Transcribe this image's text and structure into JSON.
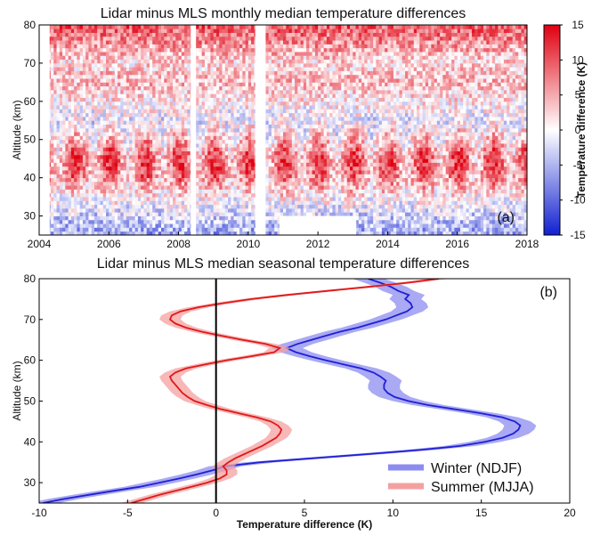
{
  "chart_data": [
    {
      "type": "heatmap",
      "title": "Lidar minus MLS  monthly median temperature differences",
      "panel_label": "(a)",
      "xlabel": "",
      "ylabel": "Altitude (km)",
      "xlim": [
        2004,
        2018
      ],
      "ylim": [
        25,
        80
      ],
      "x_ticks": [
        "2004",
        "2006",
        "2008",
        "2010",
        "2012",
        "2014",
        "2016",
        "2018"
      ],
      "y_ticks": [
        "30",
        "40",
        "50",
        "60",
        "70",
        "80"
      ],
      "colorbar": {
        "label": "Temperature difference (K)",
        "range": [
          -15,
          15
        ],
        "ticks": [
          "15",
          "10",
          "5",
          "0",
          "-5",
          "-10",
          "-15"
        ],
        "colormap": "blue-white-red",
        "low_color": "#1020d0",
        "mid_color": "#ffffff",
        "high_color": "#e00010"
      },
      "altitude_profile": [
        {
          "alt": 25,
          "dT": -6
        },
        {
          "alt": 30,
          "dT": -3
        },
        {
          "alt": 35,
          "dT": 1
        },
        {
          "alt": 40,
          "dT": 6
        },
        {
          "alt": 45,
          "dT": 8
        },
        {
          "alt": 50,
          "dT": 3
        },
        {
          "alt": 55,
          "dT": -1
        },
        {
          "alt": 60,
          "dT": 1
        },
        {
          "alt": 65,
          "dT": 4
        },
        {
          "alt": 70,
          "dT": 2
        },
        {
          "alt": 75,
          "dT": 6
        },
        {
          "alt": 80,
          "dT": 10
        }
      ],
      "data_gaps": [
        {
          "start": 2004.0,
          "end": 2004.3,
          "below_alt": 80
        },
        {
          "start": 2008.35,
          "end": 2008.5,
          "below_alt": 80
        },
        {
          "start": 2010.2,
          "end": 2010.5,
          "below_alt": 80
        },
        {
          "start": 2010.9,
          "end": 2013.1,
          "below_alt": 30
        }
      ]
    },
    {
      "type": "line",
      "title": "Lidar minus MLS  median seasonal temperature differences",
      "panel_label": "(b)",
      "xlabel": "Temperature difference (K)",
      "ylabel": "Altitude (km)",
      "xlim": [
        -10,
        20
      ],
      "ylim": [
        25,
        80
      ],
      "x_ticks": [
        "-10",
        "-5",
        "0",
        "5",
        "10",
        "15",
        "20"
      ],
      "y_ticks": [
        "30",
        "40",
        "50",
        "60",
        "70",
        "80"
      ],
      "legend_position": "bottom-right",
      "series": [
        {
          "name": "Winter (NDJF)",
          "color": "#1f1fd6",
          "band_color": "#8c8cf0",
          "band_halfwidth": 0.9,
          "points": [
            {
              "alt": 25,
              "dT": -9.8
            },
            {
              "alt": 26,
              "dT": -8.6
            },
            {
              "alt": 27,
              "dT": -7.2
            },
            {
              "alt": 28,
              "dT": -5.8
            },
            {
              "alt": 29,
              "dT": -4.3
            },
            {
              "alt": 30,
              "dT": -3.2
            },
            {
              "alt": 31,
              "dT": -2.1
            },
            {
              "alt": 32,
              "dT": -1.1
            },
            {
              "alt": 33,
              "dT": -0.2
            },
            {
              "alt": 34,
              "dT": 0.5
            },
            {
              "alt": 35,
              "dT": 2.5
            },
            {
              "alt": 36,
              "dT": 5.5
            },
            {
              "alt": 37,
              "dT": 8.6
            },
            {
              "alt": 38,
              "dT": 11.5
            },
            {
              "alt": 39,
              "dT": 13.8
            },
            {
              "alt": 40,
              "dT": 15.2
            },
            {
              "alt": 41,
              "dT": 16.2
            },
            {
              "alt": 42,
              "dT": 16.8
            },
            {
              "alt": 43,
              "dT": 17.1
            },
            {
              "alt": 44,
              "dT": 17.2
            },
            {
              "alt": 45,
              "dT": 16.9
            },
            {
              "alt": 46,
              "dT": 16.2
            },
            {
              "alt": 47,
              "dT": 15.0
            },
            {
              "alt": 48,
              "dT": 13.5
            },
            {
              "alt": 49,
              "dT": 12.0
            },
            {
              "alt": 50,
              "dT": 10.9
            },
            {
              "alt": 51,
              "dT": 10.1
            },
            {
              "alt": 52,
              "dT": 9.7
            },
            {
              "alt": 53,
              "dT": 9.5
            },
            {
              "alt": 54,
              "dT": 9.5
            },
            {
              "alt": 55,
              "dT": 9.6
            },
            {
              "alt": 56,
              "dT": 9.3
            },
            {
              "alt": 57,
              "dT": 8.9
            },
            {
              "alt": 58,
              "dT": 8.2
            },
            {
              "alt": 59,
              "dT": 7.2
            },
            {
              "alt": 60,
              "dT": 6.2
            },
            {
              "alt": 61,
              "dT": 5.3
            },
            {
              "alt": 62,
              "dT": 4.5
            },
            {
              "alt": 63,
              "dT": 4.0
            },
            {
              "alt": 64,
              "dT": 4.6
            },
            {
              "alt": 65,
              "dT": 5.4
            },
            {
              "alt": 66,
              "dT": 6.2
            },
            {
              "alt": 67,
              "dT": 7.0
            },
            {
              "alt": 68,
              "dT": 8.0
            },
            {
              "alt": 69,
              "dT": 8.8
            },
            {
              "alt": 70,
              "dT": 9.6
            },
            {
              "alt": 71,
              "dT": 10.2
            },
            {
              "alt": 72,
              "dT": 10.8
            },
            {
              "alt": 73,
              "dT": 11.1
            },
            {
              "alt": 74,
              "dT": 11.0
            },
            {
              "alt": 75,
              "dT": 10.7
            },
            {
              "alt": 76,
              "dT": 10.9
            },
            {
              "alt": 77,
              "dT": 10.3
            },
            {
              "alt": 78,
              "dT": 9.9
            },
            {
              "alt": 79,
              "dT": 9.3
            },
            {
              "alt": 80,
              "dT": 8.6
            }
          ]
        },
        {
          "name": "Summer (MJJA)",
          "color": "#e01818",
          "band_color": "#f4a0a0",
          "band_halfwidth": 0.6,
          "points": [
            {
              "alt": 25,
              "dT": -4.8
            },
            {
              "alt": 26,
              "dT": -4.0
            },
            {
              "alt": 27,
              "dT": -3.2
            },
            {
              "alt": 28,
              "dT": -2.3
            },
            {
              "alt": 29,
              "dT": -1.4
            },
            {
              "alt": 30,
              "dT": -0.5
            },
            {
              "alt": 31,
              "dT": 0.2
            },
            {
              "alt": 32,
              "dT": 0.6
            },
            {
              "alt": 33,
              "dT": 0.6
            },
            {
              "alt": 34,
              "dT": 0.4
            },
            {
              "alt": 35,
              "dT": 0.7
            },
            {
              "alt": 36,
              "dT": 1.1
            },
            {
              "alt": 37,
              "dT": 1.6
            },
            {
              "alt": 38,
              "dT": 2.1
            },
            {
              "alt": 39,
              "dT": 2.6
            },
            {
              "alt": 40,
              "dT": 3.0
            },
            {
              "alt": 41,
              "dT": 3.4
            },
            {
              "alt": 42,
              "dT": 3.6
            },
            {
              "alt": 43,
              "dT": 3.7
            },
            {
              "alt": 44,
              "dT": 3.5
            },
            {
              "alt": 45,
              "dT": 3.1
            },
            {
              "alt": 46,
              "dT": 2.3
            },
            {
              "alt": 47,
              "dT": 1.3
            },
            {
              "alt": 48,
              "dT": 0.3
            },
            {
              "alt": 49,
              "dT": -0.5
            },
            {
              "alt": 50,
              "dT": -1.2
            },
            {
              "alt": 51,
              "dT": -1.6
            },
            {
              "alt": 52,
              "dT": -1.9
            },
            {
              "alt": 53,
              "dT": -2.1
            },
            {
              "alt": 54,
              "dT": -2.3
            },
            {
              "alt": 55,
              "dT": -2.5
            },
            {
              "alt": 56,
              "dT": -2.6
            },
            {
              "alt": 57,
              "dT": -2.3
            },
            {
              "alt": 58,
              "dT": -1.7
            },
            {
              "alt": 59,
              "dT": -0.6
            },
            {
              "alt": 60,
              "dT": 0.6
            },
            {
              "alt": 61,
              "dT": 2.0
            },
            {
              "alt": 62,
              "dT": 3.3
            },
            {
              "alt": 63,
              "dT": 3.6
            },
            {
              "alt": 64,
              "dT": 2.8
            },
            {
              "alt": 65,
              "dT": 1.5
            },
            {
              "alt": 66,
              "dT": 0.3
            },
            {
              "alt": 67,
              "dT": -0.8
            },
            {
              "alt": 68,
              "dT": -1.7
            },
            {
              "alt": 69,
              "dT": -2.3
            },
            {
              "alt": 70,
              "dT": -2.6
            },
            {
              "alt": 71,
              "dT": -2.5
            },
            {
              "alt": 72,
              "dT": -2.0
            },
            {
              "alt": 73,
              "dT": -1.0
            },
            {
              "alt": 74,
              "dT": 0.4
            },
            {
              "alt": 75,
              "dT": 2.0
            },
            {
              "alt": 76,
              "dT": 4.0
            },
            {
              "alt": 77,
              "dT": 6.3
            },
            {
              "alt": 78,
              "dT": 8.6
            },
            {
              "alt": 79,
              "dT": 10.8
            },
            {
              "alt": 80,
              "dT": 12.6
            }
          ]
        }
      ],
      "reference_line": {
        "x": 0,
        "color": "#000000"
      }
    }
  ]
}
